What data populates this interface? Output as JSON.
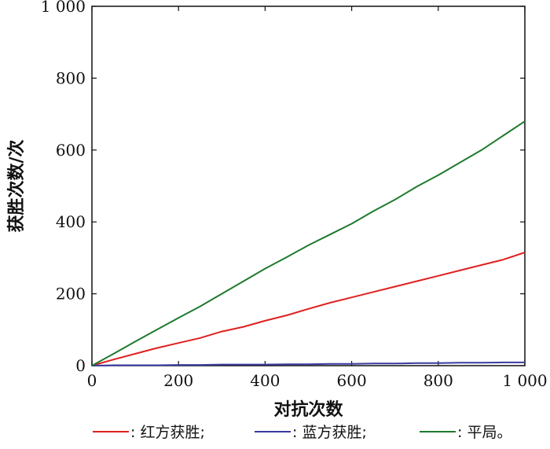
{
  "chart_data": {
    "type": "line",
    "xlabel": "对抗次数",
    "ylabel": "获胜次数/次",
    "xlim": [
      0,
      1000
    ],
    "ylim": [
      0,
      1000
    ],
    "xticks": [
      0,
      200,
      400,
      600,
      800,
      1000
    ],
    "yticks": [
      0,
      200,
      400,
      600,
      800,
      1000
    ],
    "xtick_labels": [
      "0",
      "200",
      "400",
      "600",
      "800",
      "1 000"
    ],
    "ytick_labels": [
      "0",
      "200",
      "400",
      "600",
      "800",
      "1 000"
    ],
    "grid": false,
    "legend_placement": "bottom",
    "x": [
      0,
      50,
      100,
      150,
      200,
      250,
      300,
      350,
      400,
      450,
      500,
      550,
      600,
      650,
      700,
      750,
      800,
      850,
      900,
      950,
      1000
    ],
    "series": [
      {
        "name": "红方获胜",
        "legend_label": ": 红方获胜;",
        "color": "#e02020",
        "values": [
          0,
          17,
          33,
          49,
          63,
          77,
          95,
          108,
          125,
          140,
          158,
          175,
          190,
          205,
          220,
          235,
          250,
          265,
          280,
          295,
          315
        ]
      },
      {
        "name": "蓝方获胜",
        "legend_label": ": 蓝方获胜;",
        "color": "#3a3aa0",
        "values": [
          0,
          1,
          1,
          1,
          2,
          2,
          3,
          3,
          3,
          4,
          4,
          5,
          5,
          6,
          6,
          7,
          7,
          8,
          8,
          9,
          9
        ]
      },
      {
        "name": "平局",
        "legend_label": ": 平局。",
        "color": "#1f7a2e",
        "values": [
          0,
          33,
          67,
          100,
          133,
          165,
          200,
          235,
          270,
          302,
          335,
          365,
          395,
          430,
          462,
          498,
          530,
          565,
          600,
          640,
          680
        ]
      }
    ]
  }
}
